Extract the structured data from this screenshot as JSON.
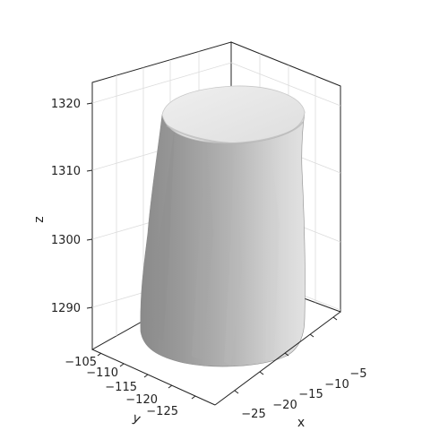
{
  "chart_data": {
    "type": "3d-surface",
    "title": "",
    "xlabel": "x",
    "ylabel": "y",
    "zlabel": "z",
    "xticks": [
      "−25",
      "−20",
      "−15",
      "−10",
      "−5"
    ],
    "yticks": [
      "−105",
      "−110",
      "−115",
      "−120",
      "−125"
    ],
    "zticks": [
      "1290",
      "1300",
      "1310",
      "1320"
    ],
    "xlim": [
      -28,
      -3
    ],
    "ylim": [
      -103,
      -128
    ],
    "zlim": [
      1283,
      1322
    ],
    "grid": true,
    "shape": "irregular upright cylinder",
    "center": {
      "x": -15,
      "y": -115
    },
    "radius": 8,
    "z_range": [
      1284,
      1320
    ],
    "colors": {
      "surface_light": "#e4e4e4",
      "surface_dark": "#7c7c7c",
      "top": "#ebebeb"
    }
  }
}
